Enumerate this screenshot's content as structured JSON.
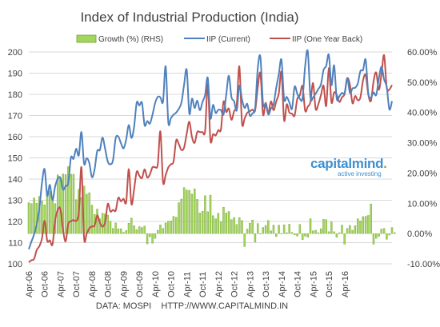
{
  "chart_data": {
    "type": "line",
    "title": "Index of Industrial Production (India)",
    "source": "DATA: MOSPI    HTTP://WWW.CAPITALMIND.IN",
    "legend_position": "top-right",
    "colors": {
      "growth": "#a4d65e",
      "growth_stroke": "#6e9f2b",
      "iip_current": "#4f81bd",
      "iip_back": "#c0504d",
      "grid": "#d9d9d9"
    },
    "x_start_month": "Apr-06",
    "x_tick_labels": [
      "Apr-06",
      "Oct-06",
      "Apr-07",
      "Oct-07",
      "Apr-08",
      "Oct-08",
      "Apr-09",
      "Oct-09",
      "Apr-10",
      "Oct-10",
      "Apr-11",
      "Oct-11",
      "Apr-12",
      "Oct-12",
      "Apr-13",
      "Oct-13",
      "Apr-14",
      "Oct-14",
      "Apr-15",
      "Oct-15",
      "Apr-16"
    ],
    "y_left": {
      "min": 100,
      "max": 200,
      "ticks": [
        "100",
        "110",
        "120",
        "130",
        "140",
        "150",
        "160",
        "170",
        "180",
        "190",
        "200"
      ]
    },
    "y_right": {
      "min": -10,
      "max": 60,
      "ticks": [
        "-10.00%",
        "0.00%",
        "10.00%",
        "20.00%",
        "30.00%",
        "40.00%",
        "50.00%",
        "60.00%"
      ]
    },
    "grid": true,
    "series": [
      {
        "name": "Growth (%) (RHS)",
        "type": "bar",
        "axis": "right",
        "values": [
          10.2,
          9.9,
          11.8,
          10.0,
          12.3,
          10.8,
          9.5,
          14.2,
          13.9,
          11.8,
          9.9,
          19.4,
          18.2,
          19.7,
          19.5,
          22.1,
          19.6,
          19.6,
          11.2,
          14.6,
          11.9,
          15.7,
          13.0,
          13.5,
          9.4,
          6.3,
          8.1,
          4.9,
          6.7,
          6.5,
          6.1,
          4.1,
          1.7,
          3.5,
          1.6,
          1.6,
          0.4,
          1.0,
          3.4,
          5.1,
          2.6,
          1.3,
          2.3,
          2.0,
          2.5,
          -3.4,
          -1.1,
          -3.2,
          -1.6,
          1.1,
          2.9,
          1.7,
          3.5,
          4.1,
          4.2,
          5.7,
          5.4,
          10.2,
          11.4,
          15.2,
          14.4,
          14.3,
          13.1,
          14.8,
          11.3,
          6.8,
          7.4,
          12.5,
          7.2,
          12.7,
          5.9,
          4.9,
          6.7,
          3.9,
          8.7,
          6.8,
          7.3,
          4.6,
          5.3,
          3.0,
          5.3,
          4.3,
          -4.3,
          1.5,
          3.4,
          4.5,
          -2.8,
          3.3,
          -0.1,
          2.0,
          2.7,
          4.3,
          0.9,
          2.8,
          -1.0,
          2.8,
          0.0,
          2.9,
          0.3,
          3.1,
          0.4,
          -0.4,
          -0.8,
          3.0,
          -2.0,
          -0.8,
          -1.2,
          4.9,
          0.9,
          1.1,
          0.3,
          1.6,
          4.7,
          4.6,
          0.6,
          3.8,
          0.6,
          -1.2,
          0.3,
          2.8,
          -3.5,
          1.7,
          2.7,
          1.1,
          2.6,
          4.9,
          4.2,
          5.6,
          5.7,
          6.0,
          9.8,
          -3.5,
          -1.6,
          -0.9,
          1.5,
          1.7,
          -1.9,
          -0.5,
          2.0,
          0.3
        ]
      },
      {
        "name": "IIP (Current)",
        "type": "line",
        "axis": "left",
        "values": [
          106.9,
          110.5,
          113.9,
          118.8,
          126.0,
          138.1,
          144.7,
          132.2,
          137.3,
          130.1,
          136.5,
          140.2,
          140.6,
          135.1,
          136.8,
          138.1,
          150.1,
          149.6,
          154.3,
          151.2,
          162.2,
          147.3,
          149.9,
          147.5,
          140.9,
          144.6,
          153.3,
          153.7,
          159.6,
          154.3,
          148.3,
          147.0,
          149.0,
          159.2,
          160.1,
          157.0,
          154.5,
          158.7,
          165.5,
          159.4,
          164.6,
          176.1,
          174.7,
          176.0,
          165.4,
          167.4,
          166.2,
          170.4,
          175.9,
          178.8,
          178.6,
          176.6,
          193.2,
          166.9,
          168.8,
          170.4,
          171.4,
          173.2,
          176.1,
          184.5,
          191.5,
          170.9,
          178.0,
          173.6,
          177.0,
          172.5,
          176.4,
          179.8,
          187.8,
          168.8,
          175.0,
          171.2,
          172.7,
          172.5,
          170.5,
          179.6,
          188.8,
          178.7,
          176.8,
          172.4,
          184.1,
          177.6,
          173.6,
          175.5,
          170.0,
          171.1,
          173.6,
          192.3,
          197.6,
          175.6,
          175.6,
          170.5,
          173.3,
          175.2,
          183.0,
          189.6,
          196.3,
          177.8,
          178.8,
          176.2,
          173.2,
          183.6,
          180.3,
          177.9,
          178.1,
          193.3,
          200.3,
          178.6,
          178.6,
          180.3,
          182.5,
          184.7,
          191.5,
          193.4,
          198.7,
          184.3,
          193.7,
          178.0,
          179.1,
          180.7,
          180.6,
          187.8,
          180.7,
          182.8,
          183.1,
          185.1,
          191.0,
          191.5,
          196.3,
          180.4,
          178.5,
          180.9,
          179.7,
          187.4,
          193.0,
          187.0,
          183.5,
          172.9,
          176.8
        ]
      },
      {
        "name": "IIP (One Year Back)",
        "type": "line",
        "axis": "left",
        "values": [
          100.7,
          101.7,
          102.3,
          106.5,
          108.3,
          111.9,
          120.3,
          110.9,
          111.1,
          109.1,
          120.4,
          125.4,
          125.9,
          116.1,
          110.6,
          118.8,
          120.1,
          120.7,
          120.3,
          124.1,
          145.6,
          112.3,
          114.3,
          116.8,
          117.7,
          118.0,
          122.9,
          119.4,
          117.5,
          119.6,
          128.3,
          124.7,
          125.5,
          125.1,
          131.2,
          129.5,
          130.7,
          129.1,
          144.7,
          128.2,
          135.1,
          143.5,
          141.6,
          140.5,
          144.6,
          140.8,
          142.2,
          145.6,
          145.6,
          146.9,
          162.5,
          138.7,
          141.9,
          145.5,
          147.0,
          148.3,
          158.3,
          156.5,
          153.7,
          154.9,
          161.4,
          167.1,
          159.8,
          157.1,
          162.2,
          162.2,
          162.2,
          162.8,
          184.9,
          158.4,
          161.2,
          160.6,
          163.1,
          163.4,
          176.6,
          171.7,
          173.3,
          168.0,
          172.1,
          175.0,
          193.2,
          166.5,
          168.6,
          171.3,
          172.0,
          172.8,
          172.4,
          183.3,
          189.9,
          170.5,
          176.0,
          171.1,
          176.7,
          172.5,
          176.6,
          180.5,
          190.5,
          167.8,
          175.3,
          171.4,
          170.9,
          170.0,
          177.8,
          179.6,
          183.9,
          172.3,
          174.2,
          176.4,
          185.3,
          173.1,
          175.3,
          179.6,
          184.1,
          174.5,
          192.4,
          176.2,
          180.9,
          179.7,
          176.4,
          178.6,
          180.2,
          187.5,
          184.6,
          175.8,
          179.2,
          177.2,
          178.6,
          186.6,
          189.1,
          179.8,
          176.9,
          186.2,
          190.3,
          182.2,
          189.5,
          198.5,
          183.1,
          182.3,
          184.4
        ]
      }
    ]
  }
}
